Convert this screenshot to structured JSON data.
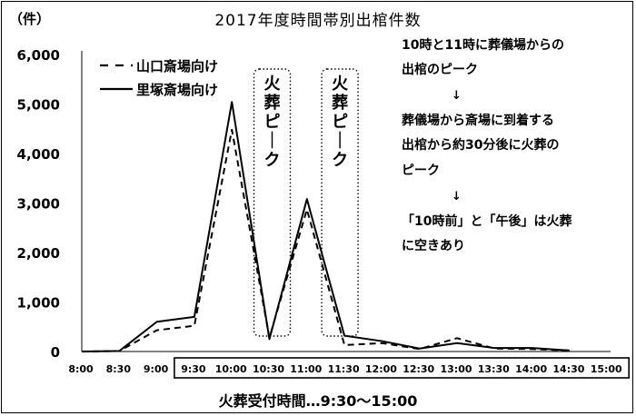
{
  "chart_data": {
    "type": "line",
    "title": "2017年度時間帯別出棺件数",
    "unit_label": "（件）",
    "xlabel": "火葬受付時間…9:30～15:00",
    "ylabel": "",
    "ylim": [
      0,
      6000
    ],
    "yticks": [
      "0",
      "1,000",
      "2,000",
      "3,000",
      "4,000",
      "5,000",
      "6,000"
    ],
    "ytick_values": [
      0,
      1000,
      2000,
      3000,
      4000,
      5000,
      6000
    ],
    "categories": [
      "8:00",
      "8:30",
      "9:00",
      "9:30",
      "10:00",
      "10:30",
      "11:00",
      "11:30",
      "12:00",
      "12:30",
      "13:00",
      "13:30",
      "14:00",
      "14:30",
      "15:00"
    ],
    "series": [
      {
        "name": "山口斎場向け",
        "style": "dashed",
        "color": "#000000",
        "values": [
          0,
          10,
          430,
          520,
          4480,
          280,
          2870,
          130,
          170,
          50,
          270,
          60,
          50,
          20,
          null
        ]
      },
      {
        "name": "里塚斎場向け",
        "style": "solid",
        "color": "#000000",
        "values": [
          0,
          10,
          600,
          700,
          5040,
          250,
          3080,
          320,
          210,
          60,
          170,
          70,
          70,
          20,
          null
        ]
      }
    ],
    "legend_position": "top-left",
    "grid": false,
    "highlight_boxes": [
      {
        "label": "火葬ピーク",
        "around": "10:30"
      },
      {
        "label": "火葬ピーク",
        "around": "11:30"
      }
    ],
    "reception_range_box": {
      "from": "9:30",
      "to": "15:00"
    },
    "annotations": [
      "10時と11時に葬儀場からの",
      "出棺のピーク",
      "葬儀場から斎場に到着する",
      "出棺から約30分後に火葬の",
      "ピーク",
      "「10時前」と「午後」は火葬",
      "に空きあり"
    ],
    "arrow_glyph": "↓"
  }
}
